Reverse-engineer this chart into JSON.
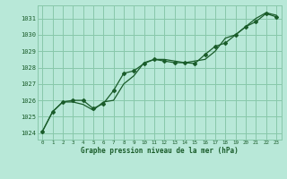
{
  "title": "",
  "xlabel": "Graphe pression niveau de la mer (hPa)",
  "background_color": "#b8e8d8",
  "grid_color": "#88c8aa",
  "line_color": "#1a5c2a",
  "xlim": [
    -0.5,
    23.5
  ],
  "ylim": [
    1023.6,
    1031.8
  ],
  "yticks": [
    1024,
    1025,
    1026,
    1027,
    1028,
    1029,
    1030,
    1031
  ],
  "xticks": [
    0,
    1,
    2,
    3,
    4,
    5,
    6,
    7,
    8,
    9,
    10,
    11,
    12,
    13,
    14,
    15,
    16,
    17,
    18,
    19,
    20,
    21,
    22,
    23
  ],
  "series1_x": [
    0,
    1,
    2,
    3,
    4,
    5,
    6,
    7,
    8,
    9,
    10,
    11,
    12,
    13,
    14,
    15,
    16,
    17,
    18,
    19,
    20,
    21,
    22,
    23
  ],
  "series1_y": [
    1024.1,
    1025.3,
    1025.9,
    1025.9,
    1025.75,
    1025.4,
    1025.9,
    1026.0,
    1027.0,
    1027.5,
    1028.3,
    1028.5,
    1028.5,
    1028.4,
    1028.3,
    1028.4,
    1028.5,
    1029.0,
    1029.8,
    1030.0,
    1030.5,
    1031.0,
    1031.35,
    1031.2
  ],
  "series2_x": [
    0,
    1,
    2,
    3,
    4,
    5,
    6,
    7,
    8,
    9,
    10,
    11,
    12,
    13,
    14,
    15,
    16,
    17,
    18,
    19,
    20,
    21,
    22,
    23
  ],
  "series2_y": [
    1024.1,
    1025.3,
    1025.9,
    1026.0,
    1026.0,
    1025.5,
    1025.8,
    1026.6,
    1027.65,
    1027.8,
    1028.25,
    1028.5,
    1028.4,
    1028.3,
    1028.3,
    1028.25,
    1028.8,
    1029.3,
    1029.5,
    1030.0,
    1030.5,
    1030.8,
    1031.3,
    1031.1
  ]
}
